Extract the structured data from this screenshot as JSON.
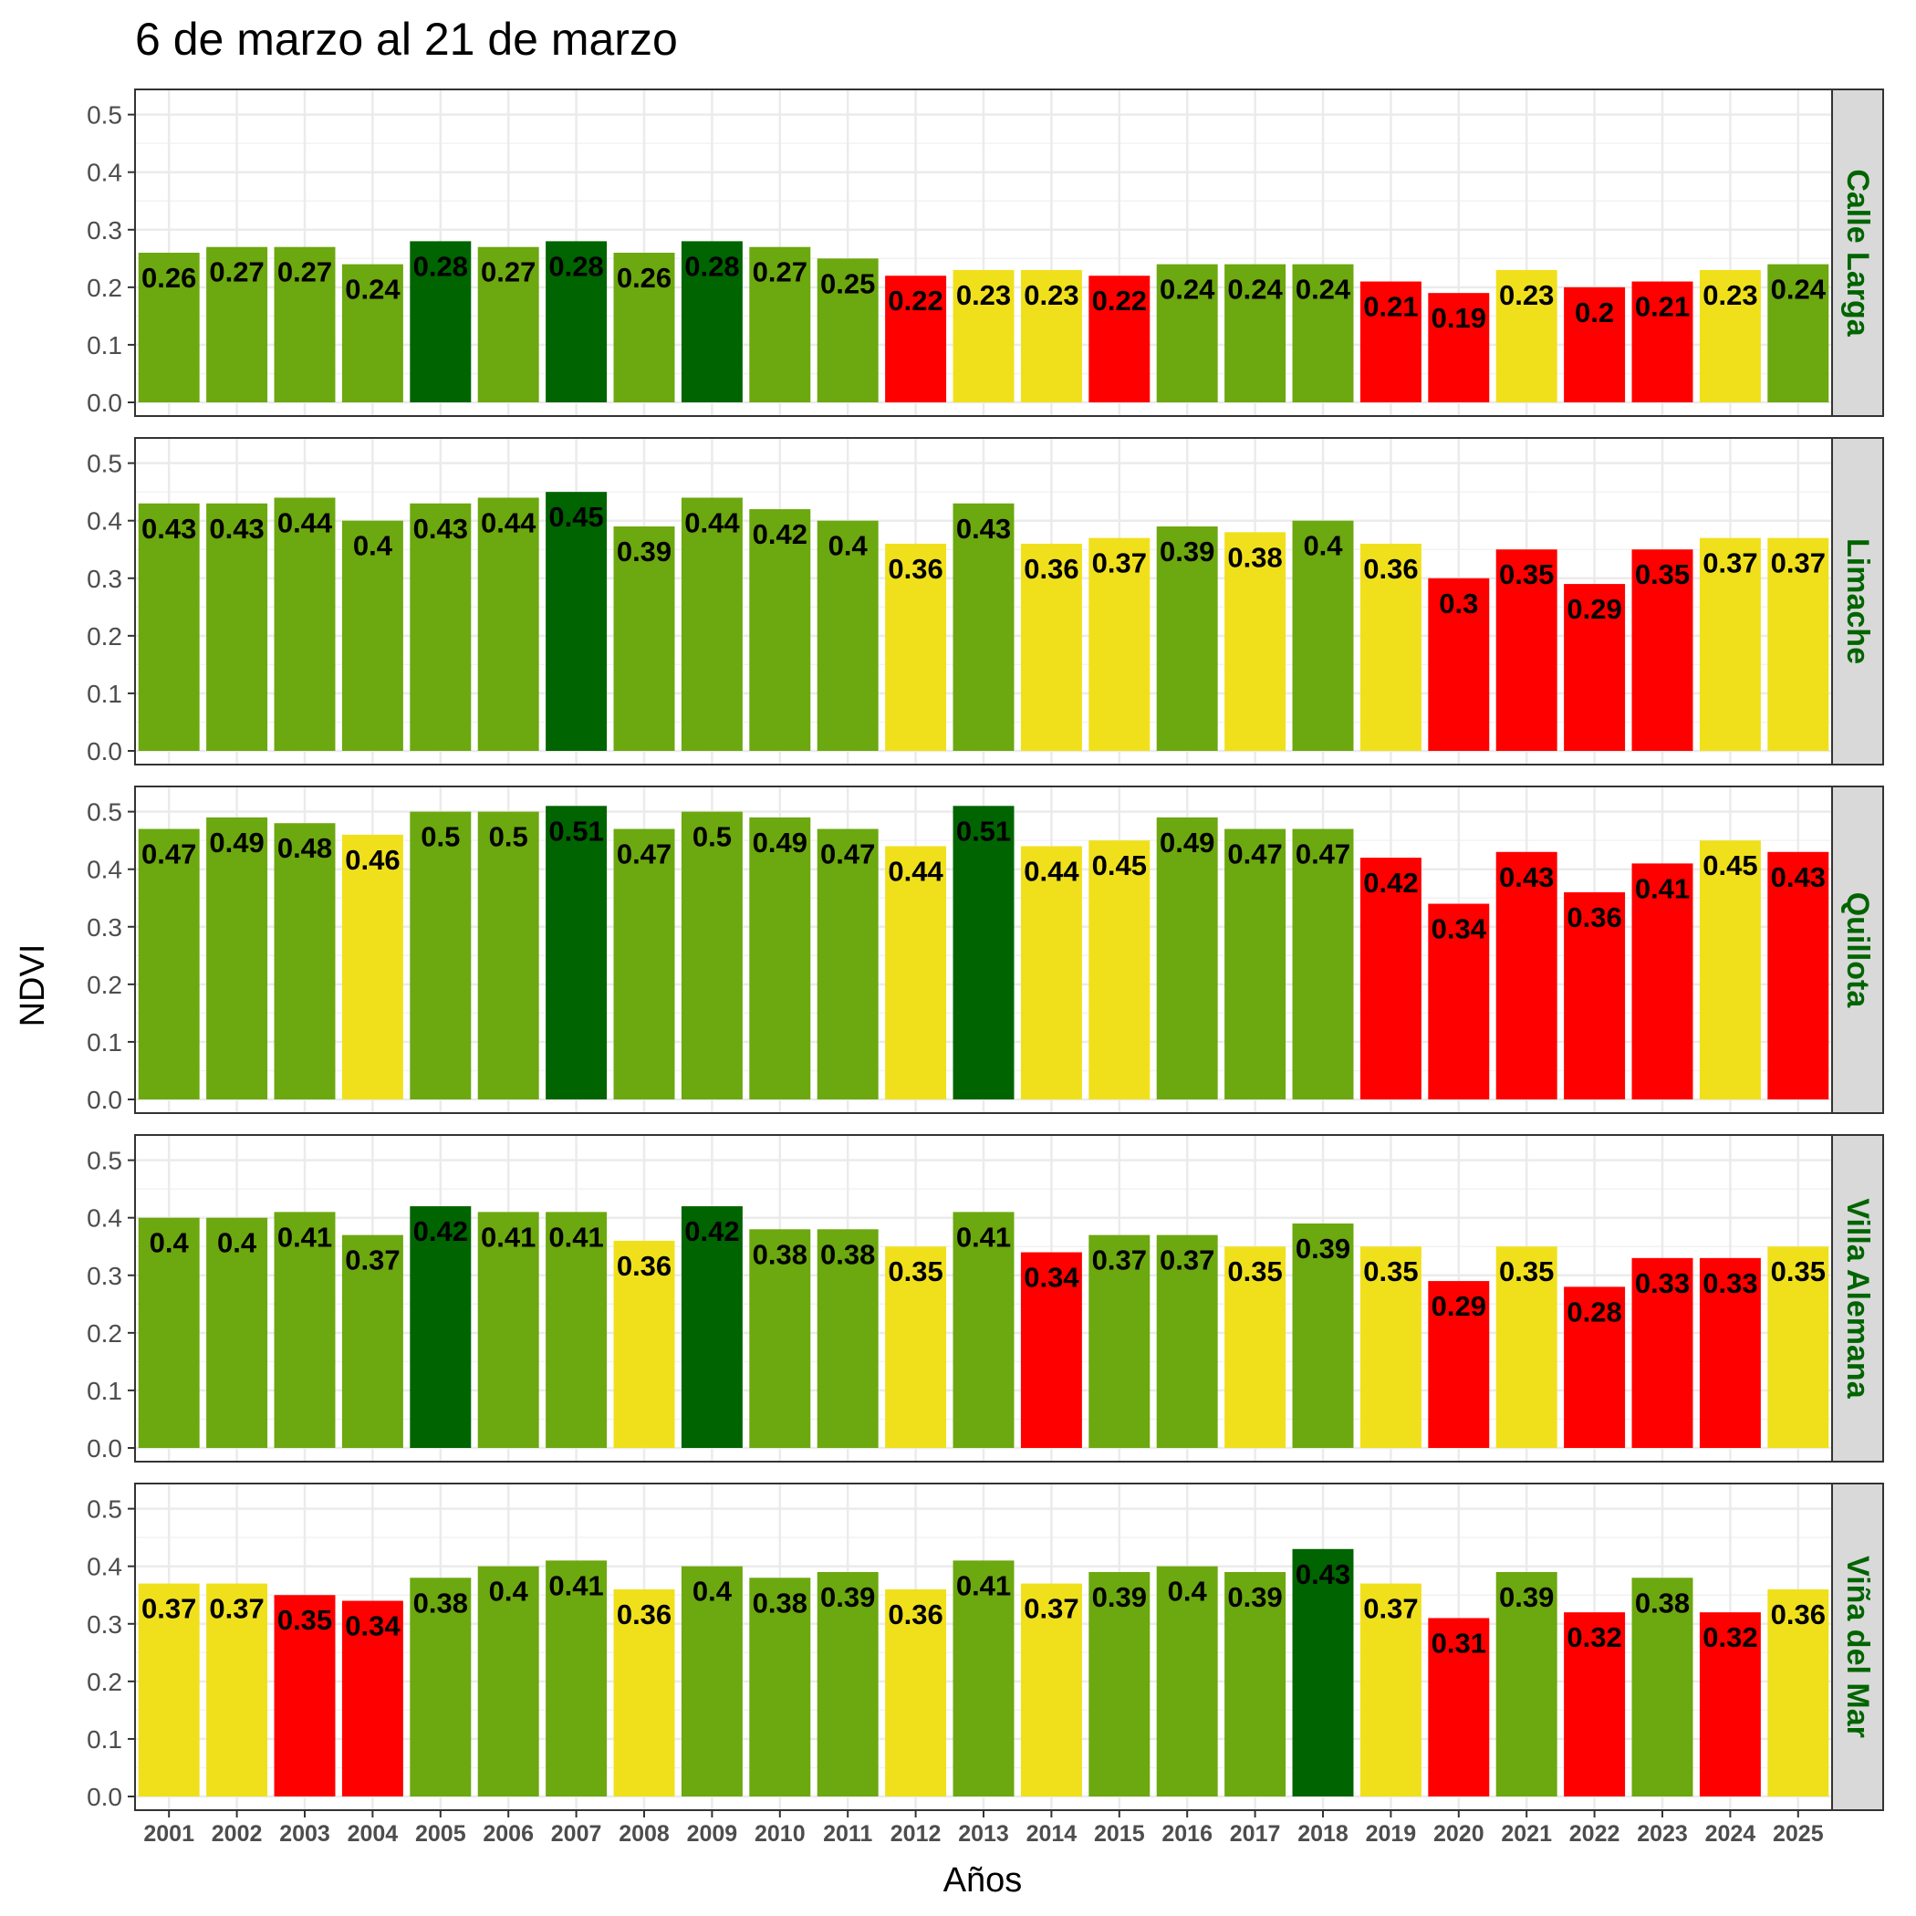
{
  "chart_data": {
    "type": "bar",
    "title": "6 de marzo al 21 de marzo",
    "xlabel": "Años",
    "ylabel": "NDVI",
    "ylim": [
      0,
      0.52
    ],
    "yticks": [
      "0.0",
      "0.1",
      "0.2",
      "0.3",
      "0.4",
      "0.5"
    ],
    "grid": true,
    "categories": [
      "2001",
      "2002",
      "2003",
      "2004",
      "2005",
      "2006",
      "2007",
      "2008",
      "2009",
      "2010",
      "2011",
      "2012",
      "2013",
      "2014",
      "2015",
      "2016",
      "2017",
      "2018",
      "2019",
      "2020",
      "2021",
      "2022",
      "2023",
      "2024",
      "2025"
    ],
    "colors": {
      "dark_green": "#006400",
      "green": "#6ca80f",
      "yellow": "#f0e01c",
      "red": "#ff0000"
    },
    "panels": [
      {
        "name": "Calle Larga",
        "values": [
          0.26,
          0.27,
          0.27,
          0.24,
          0.28,
          0.27,
          0.28,
          0.26,
          0.28,
          0.27,
          0.25,
          0.22,
          0.23,
          0.23,
          0.22,
          0.24,
          0.24,
          0.24,
          0.21,
          0.19,
          0.23,
          0.2,
          0.21,
          0.23,
          0.24
        ],
        "labels": [
          "0.26",
          "0.27",
          "0.27",
          "0.24",
          "0.28",
          "0.27",
          "0.28",
          "0.26",
          "0.28",
          "0.27",
          "0.25",
          "0.22",
          "0.23",
          "0.23",
          "0.22",
          "0.24",
          "0.24",
          "0.24",
          "0.21",
          "0.19",
          "0.23",
          "0.2",
          "0.21",
          "0.23",
          "0.24"
        ],
        "bar_colors": [
          "green",
          "green",
          "green",
          "green",
          "dark_green",
          "green",
          "dark_green",
          "green",
          "dark_green",
          "green",
          "green",
          "red",
          "yellow",
          "yellow",
          "red",
          "green",
          "green",
          "green",
          "red",
          "red",
          "yellow",
          "red",
          "red",
          "yellow",
          "green"
        ]
      },
      {
        "name": "Limache",
        "values": [
          0.43,
          0.43,
          0.44,
          0.4,
          0.43,
          0.44,
          0.45,
          0.39,
          0.44,
          0.42,
          0.4,
          0.36,
          0.43,
          0.36,
          0.37,
          0.39,
          0.38,
          0.4,
          0.36,
          0.3,
          0.35,
          0.29,
          0.35,
          0.37,
          0.37
        ],
        "labels": [
          "0.43",
          "0.43",
          "0.44",
          "0.4",
          "0.43",
          "0.44",
          "0.45",
          "0.39",
          "0.44",
          "0.42",
          "0.4",
          "0.36",
          "0.43",
          "0.36",
          "0.37",
          "0.39",
          "0.38",
          "0.4",
          "0.36",
          "0.3",
          "0.35",
          "0.29",
          "0.35",
          "0.37",
          "0.37"
        ],
        "bar_colors": [
          "green",
          "green",
          "green",
          "green",
          "green",
          "green",
          "dark_green",
          "green",
          "green",
          "green",
          "green",
          "yellow",
          "green",
          "yellow",
          "yellow",
          "green",
          "yellow",
          "green",
          "yellow",
          "red",
          "red",
          "red",
          "red",
          "yellow",
          "yellow"
        ]
      },
      {
        "name": "Quillota",
        "values": [
          0.47,
          0.49,
          0.48,
          0.46,
          0.5,
          0.5,
          0.51,
          0.47,
          0.5,
          0.49,
          0.47,
          0.44,
          0.51,
          0.44,
          0.45,
          0.49,
          0.47,
          0.47,
          0.42,
          0.34,
          0.43,
          0.36,
          0.41,
          0.45,
          0.43
        ],
        "labels": [
          "0.47",
          "0.49",
          "0.48",
          "0.46",
          "0.5",
          "0.5",
          "0.51",
          "0.47",
          "0.5",
          "0.49",
          "0.47",
          "0.44",
          "0.51",
          "0.44",
          "0.45",
          "0.49",
          "0.47",
          "0.47",
          "0.42",
          "0.34",
          "0.43",
          "0.36",
          "0.41",
          "0.45",
          "0.43"
        ],
        "bar_colors": [
          "green",
          "green",
          "green",
          "yellow",
          "green",
          "green",
          "dark_green",
          "green",
          "green",
          "green",
          "green",
          "yellow",
          "dark_green",
          "yellow",
          "yellow",
          "green",
          "green",
          "green",
          "red",
          "red",
          "red",
          "red",
          "red",
          "yellow",
          "red"
        ]
      },
      {
        "name": "Villa Alemana",
        "values": [
          0.4,
          0.4,
          0.41,
          0.37,
          0.42,
          0.41,
          0.41,
          0.36,
          0.42,
          0.38,
          0.38,
          0.35,
          0.41,
          0.34,
          0.37,
          0.37,
          0.35,
          0.39,
          0.35,
          0.29,
          0.35,
          0.28,
          0.33,
          0.33,
          0.35
        ],
        "labels": [
          "0.4",
          "0.4",
          "0.41",
          "0.37",
          "0.42",
          "0.41",
          "0.41",
          "0.36",
          "0.42",
          "0.38",
          "0.38",
          "0.35",
          "0.41",
          "0.34",
          "0.37",
          "0.37",
          "0.35",
          "0.39",
          "0.35",
          "0.29",
          "0.35",
          "0.28",
          "0.33",
          "0.33",
          "0.35"
        ],
        "bar_colors": [
          "green",
          "green",
          "green",
          "green",
          "dark_green",
          "green",
          "green",
          "yellow",
          "dark_green",
          "green",
          "green",
          "yellow",
          "green",
          "red",
          "green",
          "green",
          "yellow",
          "green",
          "yellow",
          "red",
          "yellow",
          "red",
          "red",
          "red",
          "yellow"
        ]
      },
      {
        "name": "Viña del Mar",
        "values": [
          0.37,
          0.37,
          0.35,
          0.34,
          0.38,
          0.4,
          0.41,
          0.36,
          0.4,
          0.38,
          0.39,
          0.36,
          0.41,
          0.37,
          0.39,
          0.4,
          0.39,
          0.43,
          0.37,
          0.31,
          0.39,
          0.32,
          0.38,
          0.32,
          0.36
        ],
        "labels": [
          "0.37",
          "0.37",
          "0.35",
          "0.34",
          "0.38",
          "0.4",
          "0.41",
          "0.36",
          "0.4",
          "0.38",
          "0.39",
          "0.36",
          "0.41",
          "0.37",
          "0.39",
          "0.4",
          "0.39",
          "0.43",
          "0.37",
          "0.31",
          "0.39",
          "0.32",
          "0.38",
          "0.32",
          "0.36"
        ],
        "bar_colors": [
          "yellow",
          "yellow",
          "red",
          "red",
          "green",
          "green",
          "green",
          "yellow",
          "green",
          "green",
          "green",
          "yellow",
          "green",
          "yellow",
          "green",
          "green",
          "green",
          "dark_green",
          "yellow",
          "red",
          "green",
          "red",
          "green",
          "red",
          "yellow"
        ]
      }
    ]
  }
}
